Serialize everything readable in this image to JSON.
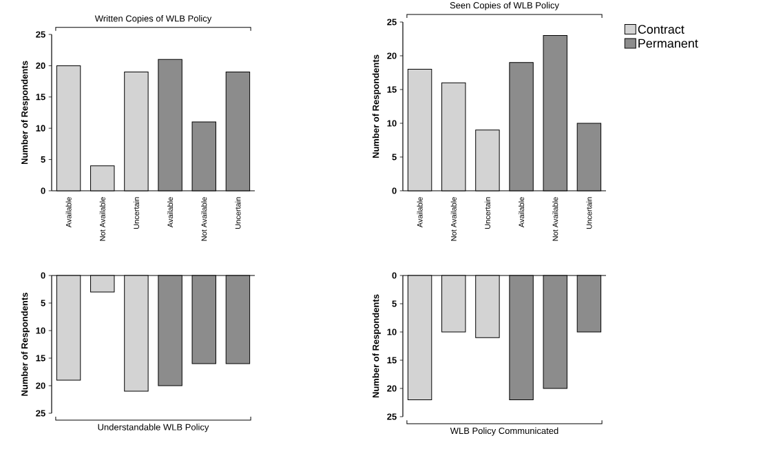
{
  "chart_data": [
    {
      "type": "bar",
      "title": "Written Copies of WLB Policy",
      "ylabel": "Number of Respondents",
      "categories": [
        "Available",
        "Not Available",
        "Uncertain",
        "Available",
        "Not Available",
        "Uncertain"
      ],
      "ylim": [
        0,
        25
      ],
      "yticks": [
        0,
        5,
        10,
        15,
        20,
        25
      ],
      "grid": false,
      "legend": false,
      "tick_labels": "xy",
      "series": [
        {
          "color": "#d3d3d3",
          "values": [
            20,
            4,
            19,
            null,
            null,
            null
          ]
        },
        {
          "color": "#8c8c8c",
          "values": [
            null,
            null,
            null,
            21,
            11,
            19
          ]
        }
      ]
    },
    {
      "type": "bar",
      "title": "Seen Copies of WLB Policy",
      "ylabel": "Number of Respondents",
      "categories": [
        "Available",
        "Not Available",
        "Uncertain",
        "Available",
        "Not Available",
        "Uncertain"
      ],
      "ylim": [
        0,
        25
      ],
      "yticks": [
        0,
        5,
        10,
        15,
        20,
        25
      ],
      "grid": false,
      "legend": "top right",
      "series": [
        {
          "name": "Contract",
          "color": "#d3d3d3",
          "values": [
            18,
            16,
            9,
            null,
            null,
            null
          ]
        },
        {
          "name": "Permanent",
          "color": "#8c8c8c",
          "values": [
            null,
            null,
            null,
            19,
            23,
            10
          ]
        }
      ]
    },
    {
      "type": "bar",
      "title": "Understandable WLB Policy",
      "ylabel": "Number of Respondents",
      "categories": [
        null,
        null,
        null,
        null,
        null,
        null
      ],
      "ylim": [
        25,
        0
      ],
      "yticks": [
        0,
        5,
        10,
        15,
        20,
        25
      ],
      "grid": false,
      "legend": false,
      "tick_labels": "y",
      "series": [
        {
          "color": "#d3d3d3",
          "values": [
            19,
            3,
            21,
            null,
            null,
            null
          ]
        },
        {
          "color": "#8c8c8c",
          "values": [
            null,
            null,
            null,
            20,
            16,
            16
          ]
        }
      ]
    },
    {
      "type": "bar",
      "title": "WLB Policy Communicated",
      "ylabel": "Number of Respondents",
      "categories": [
        null,
        null,
        null,
        null,
        null,
        null
      ],
      "ylim": [
        25,
        0
      ],
      "yticks": [
        0,
        5,
        10,
        15,
        20,
        25
      ],
      "grid": false,
      "legend": false,
      "tick_labels": "y",
      "series": [
        {
          "color": "#d3d3d3",
          "values": [
            22,
            10,
            11,
            null,
            null,
            null
          ]
        },
        {
          "color": "#8c8c8c",
          "values": [
            null,
            null,
            null,
            22,
            20,
            10
          ]
        }
      ]
    }
  ]
}
